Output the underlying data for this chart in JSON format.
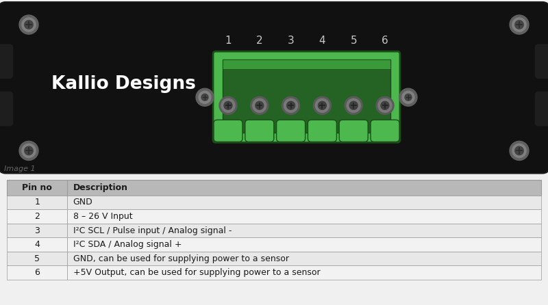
{
  "image_label": "Image 1",
  "device_label": "Kallio Designs",
  "pin_numbers": [
    "1",
    "2",
    "3",
    "4",
    "5",
    "6"
  ],
  "table_header": [
    "Pin no",
    "Description"
  ],
  "table_rows": [
    [
      "1",
      "GND"
    ],
    [
      "2",
      "8 – 26 V Input"
    ],
    [
      "3",
      "I²C SCL / Pulse input / Analog signal -"
    ],
    [
      "4",
      "I²C SDA / Analog signal +"
    ],
    [
      "5",
      "GND, can be used for supplying power to a sensor"
    ],
    [
      "6",
      "+5V Output, can be used for supplying power to a sensor"
    ]
  ],
  "device_bg": "#111111",
  "device_edge": "#2a2a2a",
  "green_bright": "#4db84d",
  "green_mid": "#3a9a3a",
  "green_dark": "#256325",
  "green_edge": "#1a4d1a",
  "header_bg": "#b8b8b8",
  "row_bg_alt": "#e8e8e8",
  "row_bg": "#f2f2f2",
  "table_border": "#999999",
  "screw_outer": "#606060",
  "screw_mid": "#808080",
  "screw_inner": "#454545",
  "screw_slot": "#2a2a2a",
  "pin_label_color": "#c8c8c8",
  "text_white": "#ffffff",
  "text_dark": "#1a1a1a",
  "image1_color": "#666666",
  "fig_bg": "#f0f0f0",
  "panel_bg": "#f0f0f0"
}
